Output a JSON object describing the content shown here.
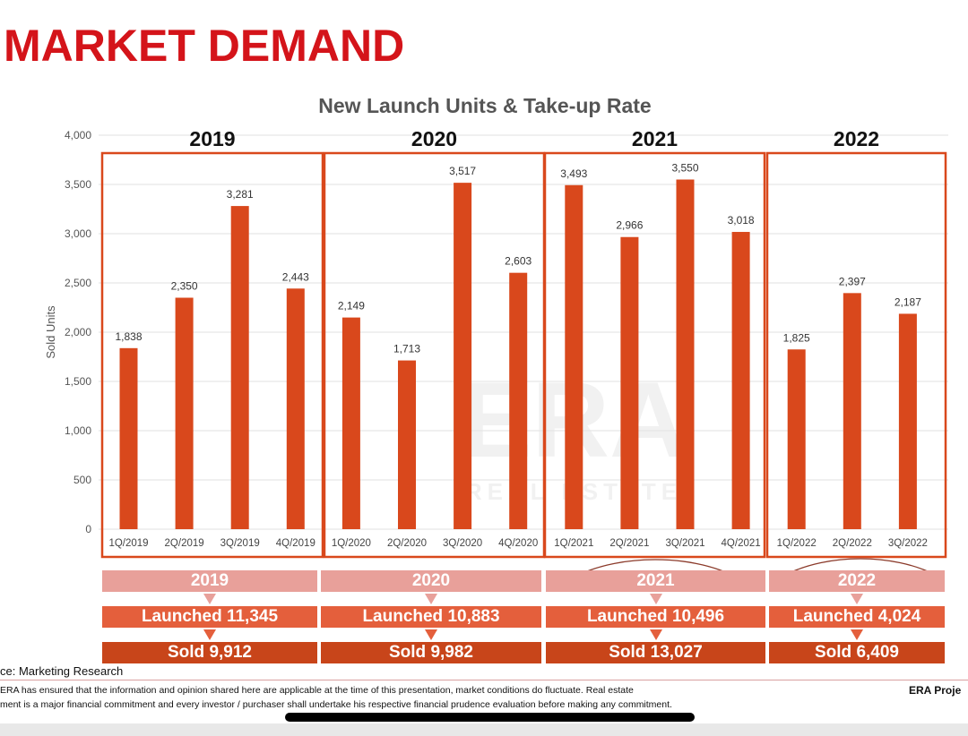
{
  "page_title": "MARKET DEMAND",
  "chart_data": {
    "type": "bar",
    "title": "New Launch Units & Take-up Rate",
    "ylabel": "Sold Units",
    "xlabel": "",
    "ylim": [
      0,
      4000
    ],
    "yticks": [
      0,
      500,
      1000,
      1500,
      2000,
      2500,
      3000,
      3500,
      4000
    ],
    "ytick_labels": [
      "0",
      "500",
      "1,000",
      "1,500",
      "2,000",
      "2,500",
      "3,000",
      "3,500",
      "4,000"
    ],
    "grid": true,
    "bar_color": "#d9481c",
    "categories": [
      "1Q/2019",
      "2Q/2019",
      "3Q/2019",
      "4Q/2019",
      "1Q/2020",
      "2Q/2020",
      "3Q/2020",
      "4Q/2020",
      "1Q/2021",
      "2Q/2021",
      "3Q/2021",
      "4Q/2021",
      "1Q/2022",
      "2Q/2022",
      "3Q/2022"
    ],
    "values": [
      1838,
      2350,
      3281,
      2443,
      2149,
      1713,
      3517,
      2603,
      3493,
      2966,
      3550,
      3018,
      1825,
      2397,
      2187
    ],
    "data_labels": [
      "1,838",
      "2,350",
      "3,281",
      "2,443",
      "2,149",
      "1,713",
      "3,517",
      "2,603",
      "3,493",
      "2,966",
      "3,550",
      "3,018",
      "1,825",
      "2,397",
      "2,187"
    ],
    "year_groups": [
      "2019",
      "2020",
      "2021",
      "2022"
    ],
    "watermark": "ERA REAL ESTATE"
  },
  "summary": [
    {
      "year": "2019",
      "launched": "Launched 11,345",
      "sold": "Sold 9,912"
    },
    {
      "year": "2020",
      "launched": "Launched 10,883",
      "sold": "Sold 9,982"
    },
    {
      "year": "2021",
      "launched": "Launched 10,496",
      "sold": "Sold 13,027"
    },
    {
      "year": "2022",
      "launched": "Launched 4,024",
      "sold": "Sold 6,409"
    }
  ],
  "footer": {
    "source": "ce: Marketing Research",
    "disclaimer_1": "ERA has ensured that the information and opinion shared here are applicable at the time of this presentation, market conditions do fluctuate.  Real estate",
    "disclaimer_2": "ment is a major financial commitment and every investor / purchaser shall undertake his respective financial prudence evaluation before making any commitment.",
    "project": "ERA Proje"
  }
}
